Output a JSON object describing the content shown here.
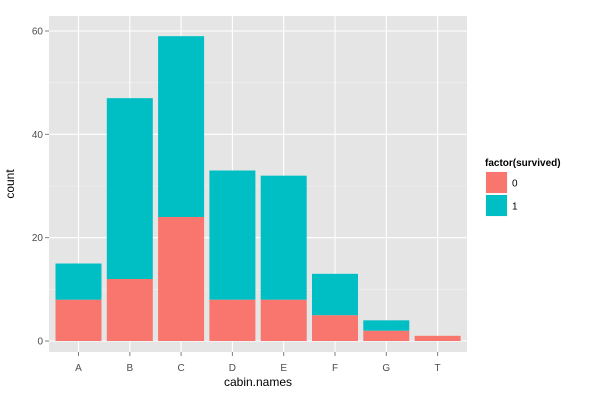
{
  "chart_data": {
    "type": "bar",
    "stacked": true,
    "xlabel": "cabin.names",
    "ylabel": "count",
    "categories": [
      "A",
      "B",
      "C",
      "D",
      "E",
      "F",
      "G",
      "T"
    ],
    "ylim": [
      0,
      60
    ],
    "yticks": [
      0,
      20,
      40,
      60
    ],
    "grid": true,
    "legend_position": "right",
    "legend_title": "factor(survived)",
    "series": [
      {
        "name": "0",
        "color": "#F8766D",
        "values": [
          8,
          12,
          24,
          8,
          8,
          5,
          2,
          1
        ]
      },
      {
        "name": "1",
        "color": "#00BFC4",
        "values": [
          7,
          35,
          35,
          25,
          24,
          8,
          2,
          0
        ]
      }
    ],
    "panel_color": "#E5E5E5",
    "grid_color": "#FFFFFF"
  }
}
